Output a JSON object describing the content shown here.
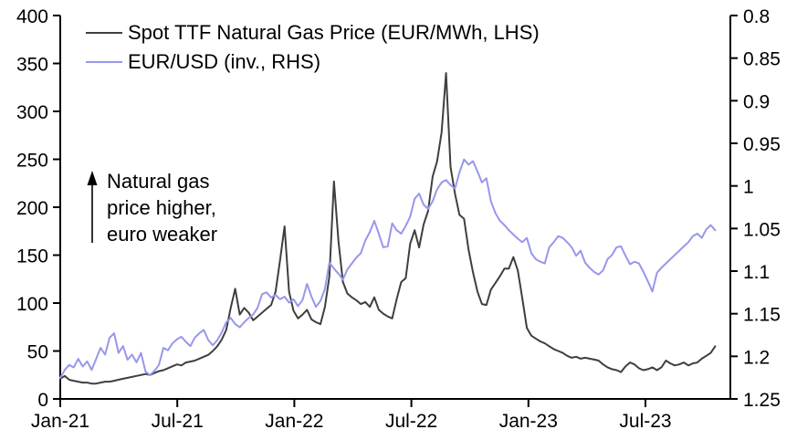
{
  "chart_data": {
    "type": "line",
    "title": "",
    "grid": false,
    "legend_position": "top-left",
    "frequency": "weekly",
    "x_start": "Jan-21",
    "x_end": "Nov-23",
    "x_axis": {
      "ticks": [
        {
          "month": 0,
          "label": "Jan-21"
        },
        {
          "month": 6,
          "label": "Jul-21"
        },
        {
          "month": 12,
          "label": "Jan-22"
        },
        {
          "month": 18,
          "label": "Jul-22"
        },
        {
          "month": 24,
          "label": "Jan-23"
        },
        {
          "month": 30,
          "label": "Jul-23"
        }
      ]
    },
    "left_axis": {
      "range": [
        0,
        400
      ],
      "inverted": false,
      "ticks": [
        {
          "v": 400,
          "label": "400"
        },
        {
          "v": 350,
          "label": "350"
        },
        {
          "v": 300,
          "label": "300"
        },
        {
          "v": 250,
          "label": "250"
        },
        {
          "v": 200,
          "label": "200"
        },
        {
          "v": 150,
          "label": "150"
        },
        {
          "v": 100,
          "label": "100"
        },
        {
          "v": 50,
          "label": "50"
        },
        {
          "v": 0,
          "label": "0"
        }
      ]
    },
    "right_axis": {
      "range": [
        0.8,
        1.25
      ],
      "inverted": true,
      "ticks": [
        {
          "v": 0.8,
          "label": "0.8"
        },
        {
          "v": 0.85,
          "label": "0.85"
        },
        {
          "v": 0.9,
          "label": "0.9"
        },
        {
          "v": 0.95,
          "label": "0.95"
        },
        {
          "v": 1.0,
          "label": "1"
        },
        {
          "v": 1.05,
          "label": "1.05"
        },
        {
          "v": 1.1,
          "label": "1.1"
        },
        {
          "v": 1.15,
          "label": "1.15"
        },
        {
          "v": 1.2,
          "label": "1.2"
        },
        {
          "v": 1.25,
          "label": "1.25"
        }
      ]
    },
    "series": [
      {
        "name": "Spot TTF Natural Gas Price (EUR/MWh, LHS)",
        "axis": "left",
        "color": "#3f3f3f",
        "values": [
          21,
          24,
          20,
          19,
          18,
          17,
          17,
          16,
          16,
          17,
          18,
          18,
          19,
          20,
          21,
          22,
          23,
          24,
          25,
          26,
          25,
          27,
          29,
          30,
          32,
          34,
          36,
          35,
          38,
          39,
          40,
          42,
          44,
          46,
          50,
          55,
          62,
          72,
          95,
          115,
          88,
          95,
          90,
          82,
          86,
          90,
          94,
          98,
          112,
          145,
          180,
          112,
          92,
          84,
          88,
          93,
          83,
          80,
          78,
          96,
          128,
          227,
          165,
          122,
          110,
          106,
          103,
          99,
          101,
          96,
          106,
          93,
          89,
          86,
          84,
          104,
          122,
          126,
          162,
          176,
          158,
          182,
          196,
          232,
          248,
          278,
          340,
          242,
          214,
          192,
          188,
          156,
          132,
          112,
          99,
          98,
          114,
          121,
          128,
          136,
          136,
          148,
          134,
          105,
          74,
          66,
          63,
          60,
          58,
          55,
          52,
          50,
          48,
          45,
          43,
          44,
          42,
          43,
          42,
          41,
          40,
          36,
          33,
          31,
          30,
          28,
          34,
          38,
          36,
          32,
          30,
          31,
          33,
          30,
          33,
          40,
          37,
          35,
          36,
          38,
          35,
          37,
          38,
          42,
          45,
          48,
          55
        ]
      },
      {
        "name": "EUR/USD (inv., RHS)",
        "axis": "right",
        "color": "#9797ec",
        "values": [
          1.225,
          1.216,
          1.21,
          1.213,
          1.203,
          1.212,
          1.206,
          1.216,
          1.203,
          1.19,
          1.198,
          1.178,
          1.173,
          1.196,
          1.188,
          1.204,
          1.198,
          1.207,
          1.196,
          1.218,
          1.222,
          1.217,
          1.21,
          1.19,
          1.193,
          1.185,
          1.18,
          1.177,
          1.183,
          1.188,
          1.178,
          1.173,
          1.169,
          1.181,
          1.187,
          1.181,
          1.172,
          1.16,
          1.155,
          1.162,
          1.166,
          1.16,
          1.155,
          1.151,
          1.143,
          1.127,
          1.125,
          1.131,
          1.128,
          1.133,
          1.13,
          1.137,
          1.133,
          1.141,
          1.134,
          1.115,
          1.13,
          1.142,
          1.135,
          1.121,
          1.09,
          1.097,
          1.103,
          1.11,
          1.098,
          1.091,
          1.084,
          1.079,
          1.064,
          1.054,
          1.041,
          1.056,
          1.072,
          1.071,
          1.044,
          1.052,
          1.056,
          1.047,
          1.036,
          1.015,
          1.009,
          1.022,
          1.027,
          1.018,
          1.004,
          0.996,
          0.993,
          0.999,
          1.003,
          0.984,
          0.969,
          0.975,
          0.971,
          0.983,
          0.996,
          0.991,
          1.018,
          1.032,
          1.041,
          1.046,
          1.052,
          1.057,
          1.062,
          1.066,
          1.061,
          1.079,
          1.086,
          1.089,
          1.091,
          1.072,
          1.066,
          1.059,
          1.061,
          1.066,
          1.072,
          1.082,
          1.076,
          1.09,
          1.096,
          1.101,
          1.104,
          1.099,
          1.086,
          1.081,
          1.072,
          1.071,
          1.082,
          1.092,
          1.089,
          1.091,
          1.101,
          1.112,
          1.124,
          1.102,
          1.096,
          1.091,
          1.086,
          1.081,
          1.076,
          1.071,
          1.066,
          1.059,
          1.056,
          1.061,
          1.051,
          1.046,
          1.052
        ]
      }
    ]
  },
  "annotation": {
    "lines": [
      "Natural gas",
      "price higher,",
      "euro weaker"
    ],
    "arrow_direction": "up"
  },
  "colors": {
    "background": "#ffffff",
    "axis": "#000000",
    "gas_line": "#3f3f3f",
    "eur_line": "#9797ec"
  }
}
